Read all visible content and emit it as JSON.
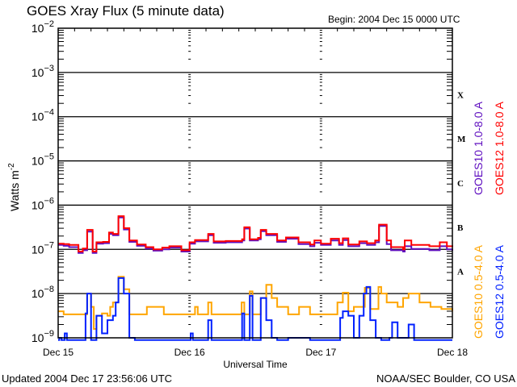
{
  "chart_data": {
    "type": "line",
    "title": "GOES Xray Flux (5 minute data)",
    "begin_label": "Begin:  2004 Dec 15 0000 UTC",
    "xlabel": "Universal Time",
    "ylabel": "Watts m",
    "ylabel_exp": "-2",
    "x_unit": "hours since 2004 Dec 15 0000 UTC",
    "xlim": [
      0,
      72
    ],
    "x_ticks": [
      {
        "hour": 0,
        "label": "Dec 15"
      },
      {
        "hour": 24,
        "label": "Dec 16"
      },
      {
        "hour": 48,
        "label": "Dec 17"
      },
      {
        "hour": 72,
        "label": "Dec 18"
      }
    ],
    "y_scale": "log",
    "ylim_log10": [
      -9,
      -2
    ],
    "y_ticks": [
      {
        "base": "10",
        "exp": "-2"
      },
      {
        "base": "10",
        "exp": "-3"
      },
      {
        "base": "10",
        "exp": "-4"
      },
      {
        "base": "10",
        "exp": "-5"
      },
      {
        "base": "10",
        "exp": "-6"
      },
      {
        "base": "10",
        "exp": "-7"
      },
      {
        "base": "10",
        "exp": "-8"
      },
      {
        "base": "10",
        "exp": "-9"
      }
    ],
    "grid_lines_log10": [
      -3,
      -4,
      -5,
      -6,
      -7,
      -8
    ],
    "flare_classes": [
      {
        "label": "X",
        "log10": -3.5
      },
      {
        "label": "M",
        "log10": -4.5
      },
      {
        "label": "C",
        "log10": -5.5
      },
      {
        "label": "B",
        "log10": -6.5
      },
      {
        "label": "A",
        "log10": -7.5
      }
    ],
    "series": [
      {
        "name": "GOES10 1.0-8.0 A",
        "color": "#6010c0",
        "x": [
          0,
          1,
          2,
          3.7,
          4.5,
          5.3,
          6.3,
          7,
          8.2,
          9.3,
          10,
          11,
          12,
          13,
          14.4,
          16,
          17.4,
          19,
          20.3,
          22.5,
          24,
          25,
          27.4,
          28.4,
          30.6,
          33.6,
          34,
          35,
          36.5,
          37,
          38,
          40,
          41.6,
          43.9,
          46,
          46.8,
          48,
          49.8,
          51.3,
          52,
          53,
          55,
          56.4,
          57.9,
          58.6,
          60,
          60.8,
          63,
          63.3,
          64.5,
          67.8,
          69.7,
          71,
          72
        ],
        "y_log10": [
          -6.9,
          -6.92,
          -6.95,
          -7.08,
          -7.02,
          -6.6,
          -7.08,
          -6.87,
          -6.86,
          -6.65,
          -6.68,
          -6.28,
          -6.55,
          -6.83,
          -6.92,
          -6.98,
          -7.03,
          -7.0,
          -6.96,
          -7.05,
          -6.87,
          -6.82,
          -6.68,
          -6.85,
          -6.84,
          -6.8,
          -6.53,
          -6.8,
          -6.77,
          -6.59,
          -6.68,
          -6.83,
          -6.76,
          -6.88,
          -6.93,
          -6.85,
          -6.9,
          -6.8,
          -6.9,
          -6.79,
          -6.93,
          -6.86,
          -6.9,
          -6.84,
          -6.47,
          -6.88,
          -7.02,
          -7.05,
          -6.93,
          -6.99,
          -7.02,
          -6.93,
          -7.0,
          -7.03
        ]
      },
      {
        "name": "GOES12 1.0-8.0 A",
        "color": "#ff0000",
        "x": [
          0,
          1,
          2,
          3.7,
          4.5,
          5.3,
          6.3,
          7,
          8.2,
          9.3,
          10,
          11,
          12,
          13,
          14.4,
          16,
          17.4,
          19,
          20.3,
          22.5,
          24,
          25,
          27.4,
          28.4,
          30.6,
          33.6,
          34,
          35,
          36.5,
          37,
          38,
          40,
          41.6,
          43.9,
          46,
          46.8,
          48,
          49.8,
          51.3,
          52,
          53,
          55,
          56.4,
          57.9,
          58.6,
          60,
          60.8,
          63,
          63.3,
          64.5,
          67.8,
          69.7,
          71,
          72
        ],
        "y_log10": [
          -6.87,
          -6.88,
          -6.9,
          -7.05,
          -6.98,
          -6.56,
          -7.05,
          -6.84,
          -6.83,
          -6.62,
          -6.65,
          -6.25,
          -6.52,
          -6.8,
          -6.89,
          -6.95,
          -7.0,
          -6.96,
          -6.93,
          -7.02,
          -6.84,
          -6.79,
          -6.65,
          -6.82,
          -6.81,
          -6.77,
          -6.5,
          -6.77,
          -6.74,
          -6.56,
          -6.65,
          -6.8,
          -6.73,
          -6.84,
          -6.89,
          -6.8,
          -6.87,
          -6.76,
          -6.86,
          -6.75,
          -6.89,
          -6.82,
          -6.86,
          -6.8,
          -6.44,
          -6.8,
          -6.95,
          -7.0,
          -6.8,
          -6.9,
          -6.93,
          -6.84,
          -6.93,
          -6.95
        ]
      },
      {
        "name": "GOES10 0.5-4.0 A",
        "color": "#ffa500",
        "x": [
          0,
          1,
          2,
          5,
          5.3,
          6,
          6.5,
          7,
          8,
          9,
          9.5,
          10,
          11,
          12,
          13,
          16,
          16.2,
          19,
          19.3,
          24,
          25,
          25.5,
          27.4,
          28,
          33.5,
          34,
          35,
          35.5,
          37,
          38,
          39,
          40,
          42,
          44,
          46,
          48,
          50,
          51,
          52,
          53,
          54,
          56,
          57,
          58.5,
          59,
          60,
          62,
          63,
          64,
          66,
          68,
          70,
          72
        ],
        "y_log10": [
          -8.4,
          -8.47,
          -8.47,
          -8.47,
          -8.0,
          -8.3,
          -8.8,
          -8.5,
          -8.45,
          -8.5,
          -8.3,
          -8.2,
          -7.62,
          -7.9,
          -8.47,
          -8.47,
          -8.3,
          -8.3,
          -8.47,
          -8.47,
          -8.3,
          -8.47,
          -8.2,
          -8.47,
          -8.2,
          -8.47,
          -7.95,
          -8.47,
          -8.1,
          -7.8,
          -8.1,
          -8.3,
          -8.47,
          -8.3,
          -8.47,
          -8.47,
          -8.47,
          -8.2,
          -7.98,
          -8.4,
          -8.3,
          -7.87,
          -8.35,
          -7.85,
          -8.0,
          -8.2,
          -8.3,
          -8.1,
          -8.0,
          -8.2,
          -8.3,
          -8.35,
          -8.4
        ]
      },
      {
        "name": "GOES12 0.5-4.0 A",
        "color": "#0020ff",
        "x": [
          0,
          0.2,
          0.6,
          1.2,
          1.6,
          5,
          5.3,
          6,
          7,
          8,
          9,
          10,
          10.5,
          11,
          12,
          13,
          14,
          24,
          24.2,
          24.6,
          27.4,
          28,
          33.6,
          34,
          35,
          35.5,
          37,
          38,
          39,
          40,
          42,
          46,
          48,
          50.5,
          51.5,
          52,
          53,
          54,
          55,
          55.8,
          56.3,
          57,
          58,
          59,
          60.5,
          61,
          62,
          63.5,
          64,
          65,
          66,
          72
        ],
        "y_log10": [
          -9.2,
          -9.0,
          -9.2,
          -8.9,
          -9.2,
          -8.45,
          -8.0,
          -9.1,
          -8.5,
          -8.9,
          -8.6,
          -8.5,
          -8.2,
          -7.65,
          -8.0,
          -9.0,
          -9.2,
          -9.2,
          -8.9,
          -9.2,
          -8.6,
          -9.2,
          -8.45,
          -9.2,
          -8.05,
          -9.2,
          -8.1,
          -8.6,
          -9.0,
          -9.1,
          -9.0,
          -9.2,
          -9.1,
          -9.2,
          -8.55,
          -8.4,
          -8.5,
          -9.0,
          -8.5,
          -8.0,
          -7.85,
          -8.6,
          -9.0,
          -9.1,
          -9.0,
          -8.65,
          -9.0,
          -9.0,
          -8.7,
          -9.1,
          -9.2,
          -9.2
        ]
      }
    ]
  },
  "footer": {
    "updated": "Updated 2004 Dec 17 23:56:06 UTC",
    "credit": "NOAA/SEC Boulder, CO USA"
  }
}
